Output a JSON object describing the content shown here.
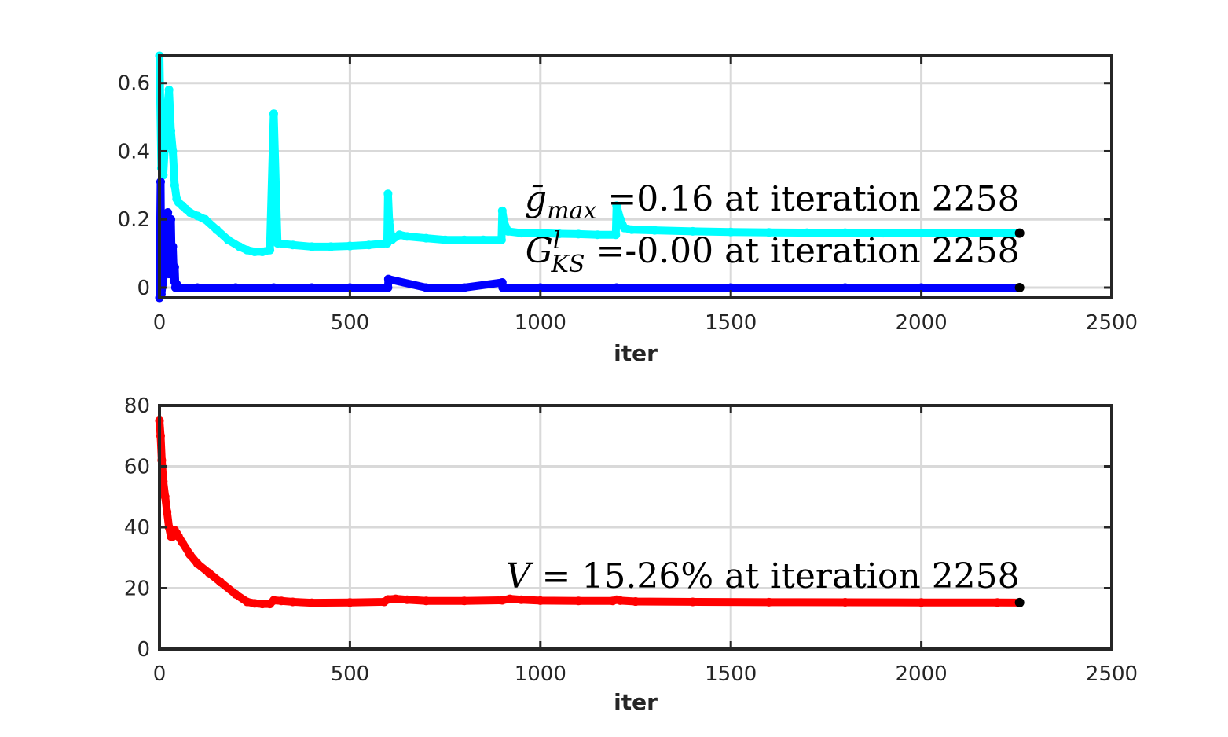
{
  "chart_data": [
    {
      "type": "scatter",
      "title": "",
      "xlabel": "iter",
      "ylabel": "",
      "xlim": [
        0,
        2500
      ],
      "ylim": [
        -0.03,
        0.68
      ],
      "xticks": [
        "0",
        "500",
        "1000",
        "1500",
        "2000",
        "2500"
      ],
      "yticks": [
        "0",
        "0.2",
        "0.4",
        "0.6"
      ],
      "xtick_values": [
        0,
        500,
        1000,
        1500,
        2000,
        2500
      ],
      "ytick_values": [
        0,
        0.2,
        0.4,
        0.6
      ],
      "grid": true,
      "series": [
        {
          "color": "#00ffff",
          "x": [
            0,
            5,
            10,
            15,
            20,
            25,
            30,
            35,
            40,
            45,
            50,
            60,
            70,
            80,
            100,
            120,
            150,
            180,
            210,
            230,
            250,
            270,
            290,
            300,
            310,
            350,
            400,
            450,
            500,
            550,
            598,
            600,
            603,
            610,
            630,
            650,
            700,
            750,
            800,
            850,
            898,
            900,
            905,
            915,
            950,
            1000,
            1050,
            1100,
            1150,
            1198,
            1200,
            1210,
            1220,
            1240,
            1300,
            1400,
            1500,
            1600,
            1700,
            1800,
            1900,
            2000,
            2100,
            2200,
            2258
          ],
          "y": [
            0.68,
            0.35,
            0.33,
            0.43,
            0.52,
            0.58,
            0.46,
            0.4,
            0.3,
            0.26,
            0.25,
            0.24,
            0.23,
            0.22,
            0.21,
            0.2,
            0.17,
            0.14,
            0.12,
            0.11,
            0.105,
            0.105,
            0.11,
            0.51,
            0.13,
            0.125,
            0.12,
            0.12,
            0.122,
            0.125,
            0.13,
            0.275,
            0.195,
            0.14,
            0.155,
            0.15,
            0.145,
            0.14,
            0.14,
            0.14,
            0.14,
            0.225,
            0.19,
            0.165,
            0.16,
            0.16,
            0.158,
            0.157,
            0.155,
            0.155,
            0.24,
            0.2,
            0.175,
            0.17,
            0.168,
            0.165,
            0.163,
            0.162,
            0.161,
            0.161,
            0.16,
            0.16,
            0.16,
            0.16,
            0.16
          ]
        },
        {
          "color": "#0000ff",
          "x": [
            0,
            3,
            5,
            8,
            10,
            12,
            15,
            18,
            20,
            22,
            25,
            28,
            30,
            32,
            35,
            38,
            40,
            42,
            45,
            50,
            100,
            200,
            300,
            400,
            500,
            600,
            601,
            700,
            800,
            900,
            901,
            1000,
            1200,
            1500,
            1800,
            2000,
            2258
          ],
          "y": [
            -0.03,
            0.31,
            -0.02,
            0.01,
            0.03,
            0.05,
            0.1,
            0.16,
            0.06,
            0.22,
            0.04,
            0.14,
            0.2,
            0.08,
            0.12,
            0.02,
            0.06,
            0.0,
            0.01,
            0.0,
            0.0,
            0.0,
            0.0,
            0.0,
            0.0,
            0.0,
            0.025,
            0.0,
            0.0,
            0.015,
            0.0,
            0.0,
            0.0,
            0.0,
            0.0,
            0.0,
            0.0
          ]
        }
      ],
      "final_points": [
        {
          "x": 2258,
          "y": 0.16,
          "color": "#000000"
        },
        {
          "x": 2258,
          "y": 0.0,
          "color": "#000000"
        }
      ],
      "annotations": [
        {
          "text": "ḡ_max =0.16 at iteration 2258",
          "symbol": "ḡ",
          "sub": "max",
          "rest": " =0.16 at iteration 2258",
          "x": 2258,
          "y": 0.16
        },
        {
          "text": "G^l_KS =-0.00 at iteration 2258",
          "symbol": "G",
          "sup": "l",
          "sub": "KS",
          "rest": " =-0.00 at iteration 2258",
          "x": 2258,
          "y": 0.0
        }
      ]
    },
    {
      "type": "scatter",
      "title": "",
      "xlabel": "iter",
      "ylabel": "",
      "xlim": [
        0,
        2500
      ],
      "ylim": [
        0,
        80
      ],
      "xticks": [
        "0",
        "500",
        "1000",
        "1500",
        "2000",
        "2500"
      ],
      "yticks": [
        "0",
        "20",
        "40",
        "60",
        "80"
      ],
      "xtick_values": [
        0,
        500,
        1000,
        1500,
        2000,
        2500
      ],
      "ytick_values": [
        0,
        20,
        40,
        60,
        80
      ],
      "grid": true,
      "series": [
        {
          "color": "#ff0000",
          "x": [
            0,
            3,
            6,
            10,
            15,
            20,
            25,
            30,
            35,
            40,
            45,
            50,
            60,
            80,
            100,
            130,
            160,
            200,
            230,
            250,
            270,
            290,
            300,
            320,
            350,
            400,
            500,
            590,
            600,
            620,
            650,
            700,
            800,
            900,
            920,
            950,
            1000,
            1100,
            1190,
            1200,
            1210,
            1250,
            1400,
            1600,
            1800,
            2000,
            2200,
            2258
          ],
          "y": [
            75,
            70,
            62,
            55,
            50,
            45,
            40,
            37,
            37,
            39,
            38,
            37,
            35,
            31,
            28,
            25,
            22,
            18,
            15.5,
            15,
            14.8,
            14.8,
            16,
            15.8,
            15.5,
            15.2,
            15.3,
            15.5,
            16.3,
            16.5,
            16.2,
            15.8,
            15.8,
            16,
            16.5,
            16.2,
            15.9,
            15.8,
            15.8,
            16.2,
            15.9,
            15.6,
            15.5,
            15.4,
            15.35,
            15.3,
            15.28,
            15.26
          ]
        }
      ],
      "final_points": [
        {
          "x": 2258,
          "y": 15.26,
          "color": "#000000"
        }
      ],
      "annotations": [
        {
          "text": "V = 15.26% at iteration 2258",
          "symbol": "V",
          "rest": " = 15.26% at iteration 2258",
          "x": 2258,
          "y": 15.26
        }
      ]
    }
  ]
}
